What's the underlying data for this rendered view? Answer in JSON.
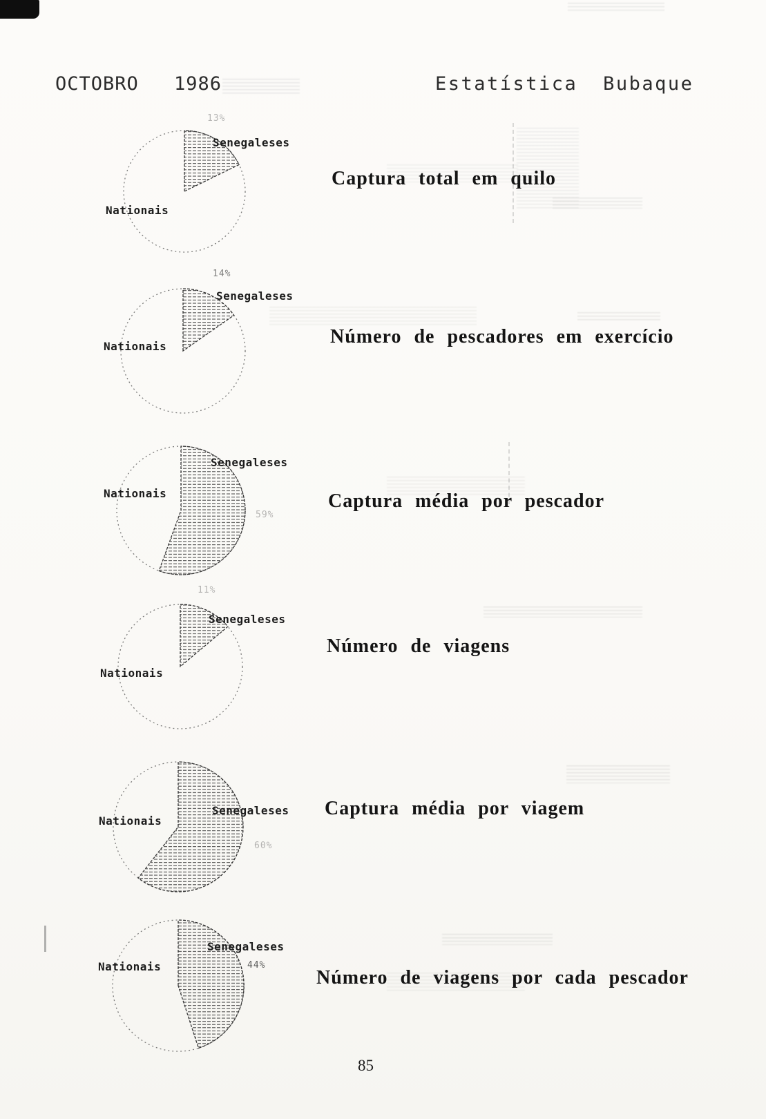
{
  "page": {
    "header": {
      "left": "OCTOBRO",
      "year": "1986",
      "right": "Estatística Bubaque"
    },
    "page_number": "85"
  },
  "chart_data": [
    {
      "type": "pie",
      "title": "Captura total em quilo",
      "legend_position": "around",
      "slices": [
        {
          "label": "Senegaleses",
          "pct_label": "13%",
          "value_pct": 13,
          "hatched": true,
          "drawn_angle_deg": 64
        },
        {
          "label": "Nationais",
          "value_pct": 87,
          "hatched": false
        }
      ]
    },
    {
      "type": "pie",
      "title": "Número de pescadores em exercício",
      "legend_position": "around",
      "slices": [
        {
          "label": "Senegaleses",
          "pct_label": "14%",
          "value_pct": 14,
          "hatched": true,
          "drawn_angle_deg": 55
        },
        {
          "label": "Nationais",
          "value_pct": 86,
          "hatched": false
        }
      ]
    },
    {
      "type": "pie",
      "title": "Captura média por pescador",
      "legend_position": "around",
      "slices": [
        {
          "label": "Senegaleses",
          "pct_label": "59%",
          "value_pct": 59,
          "hatched": true,
          "drawn_angle_deg": 200
        },
        {
          "label": "Nationais",
          "value_pct": 41,
          "hatched": false
        }
      ]
    },
    {
      "type": "pie",
      "title": "Número de viagens",
      "legend_position": "around",
      "slices": [
        {
          "label": "Senegaleses",
          "pct_label": "11%",
          "value_pct": 11,
          "hatched": true,
          "drawn_angle_deg": 50
        },
        {
          "label": "Nationais",
          "value_pct": 89,
          "hatched": false
        }
      ]
    },
    {
      "type": "pie",
      "title": "Captura média por viagem",
      "legend_position": "around",
      "slices": [
        {
          "label": "Senegaleses",
          "pct_label": "60%",
          "value_pct": 60,
          "hatched": true,
          "drawn_angle_deg": 218
        },
        {
          "label": "Nationais",
          "value_pct": 40,
          "hatched": false
        }
      ]
    },
    {
      "type": "pie",
      "title": "Número de viagens por cada pescador",
      "legend_position": "around",
      "slices": [
        {
          "label": "Senegaleses",
          "pct_label": "44%",
          "value_pct": 44,
          "hatched": true,
          "drawn_angle_deg": 162
        },
        {
          "label": "Nationais",
          "value_pct": 56,
          "hatched": false
        }
      ]
    }
  ]
}
